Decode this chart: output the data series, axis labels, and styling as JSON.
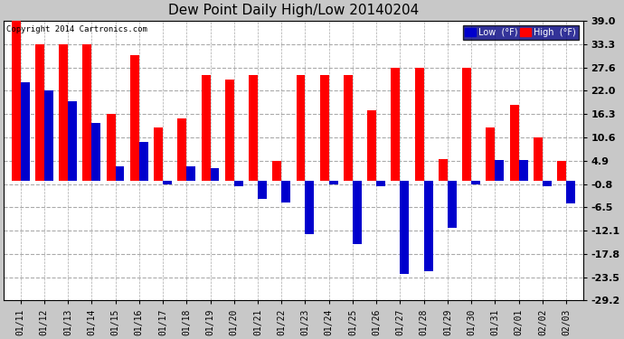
{
  "title": "Dew Point Daily High/Low 20140204",
  "copyright": "Copyright 2014 Cartronics.com",
  "legend_low": "Low  (°F)",
  "legend_high": "High  (°F)",
  "dates": [
    "01/11",
    "01/12",
    "01/13",
    "01/14",
    "01/15",
    "01/16",
    "01/17",
    "01/18",
    "01/19",
    "01/20",
    "01/21",
    "01/22",
    "01/23",
    "01/24",
    "01/25",
    "01/26",
    "01/27",
    "01/28",
    "01/29",
    "01/30",
    "01/31",
    "02/01",
    "02/02",
    "02/03"
  ],
  "high": [
    39.0,
    33.3,
    33.3,
    33.3,
    16.3,
    30.6,
    13.0,
    15.3,
    25.9,
    24.8,
    25.9,
    4.9,
    25.9,
    25.9,
    25.9,
    17.2,
    27.6,
    27.6,
    5.4,
    27.6,
    13.0,
    18.5,
    10.6,
    4.9
  ],
  "low": [
    24.0,
    22.0,
    19.5,
    14.0,
    3.5,
    9.5,
    -0.8,
    3.5,
    3.0,
    -1.3,
    -4.5,
    -5.3,
    -13.0,
    -0.8,
    -15.5,
    -1.3,
    -22.8,
    -22.0,
    -11.5,
    -0.8,
    5.0,
    5.0,
    -1.3,
    -5.5
  ],
  "bg_color": "#c8c8c8",
  "plot_bg_color": "#ffffff",
  "grid_color": "#aaaaaa",
  "high_color": "#ff0000",
  "low_color": "#0000cd",
  "ylim": [
    -29.2,
    39.0
  ],
  "yticks": [
    39.0,
    33.3,
    27.6,
    22.0,
    16.3,
    10.6,
    4.9,
    -0.8,
    -6.5,
    -12.1,
    -17.8,
    -23.5,
    -29.2
  ]
}
